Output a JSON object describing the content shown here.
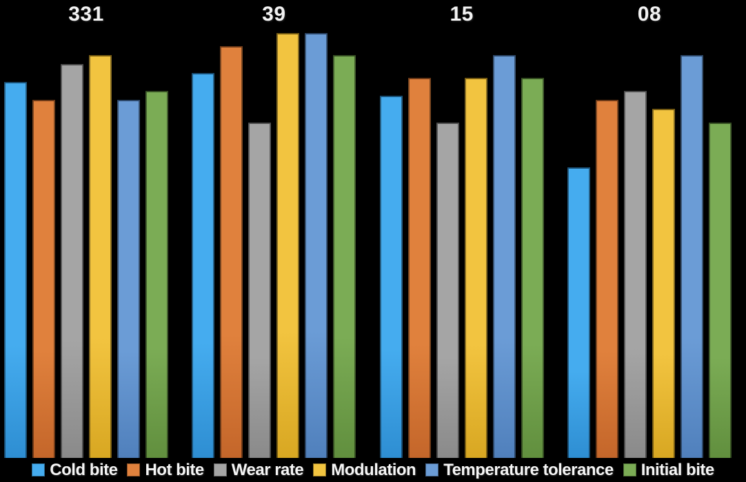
{
  "chart": {
    "background": "#000000",
    "text_color": "#F2F2F2"
  },
  "chart_data": {
    "type": "bar",
    "title": "",
    "categories": [
      "331",
      "39",
      "15",
      "08"
    ],
    "series": [
      {
        "name": "Cold bite",
        "color": "#45ACEF",
        "color_dark": "#2E8ED2",
        "values": [
          8.4,
          8.6,
          8.1,
          6.5
        ]
      },
      {
        "name": "Hot bite",
        "color": "#E0813D",
        "color_dark": "#C4662A",
        "values": [
          8.0,
          9.2,
          8.5,
          8.0
        ]
      },
      {
        "name": "Wear rate",
        "color": "#A5A5A5",
        "color_dark": "#8A8A8A",
        "values": [
          8.8,
          7.5,
          7.5,
          8.2
        ]
      },
      {
        "name": "Modulation",
        "color": "#F2C440",
        "color_dark": "#D8A722",
        "values": [
          9.0,
          9.5,
          8.5,
          7.8
        ]
      },
      {
        "name": "Temperature tolerance",
        "color": "#6B9CD6",
        "color_dark": "#5080BC",
        "values": [
          8.0,
          9.5,
          9.0,
          9.0
        ]
      },
      {
        "name": "Initial bite",
        "color": "#7BAC55",
        "color_dark": "#618F3E",
        "values": [
          8.2,
          9.0,
          8.5,
          7.5
        ]
      }
    ],
    "xlabel": "",
    "ylabel": "",
    "ylim": [
      0,
      10
    ],
    "grid": false,
    "axes_visible": false,
    "legend_position": "bottom"
  }
}
